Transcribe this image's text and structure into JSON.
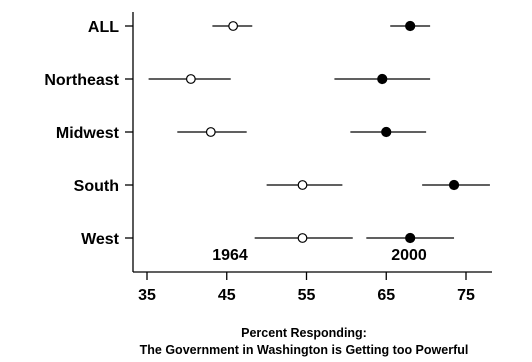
{
  "chart_data": {
    "type": "scatter",
    "categories": [
      "ALL",
      "Northeast",
      "Midwest",
      "South",
      "West"
    ],
    "series": [
      {
        "name": "1964",
        "marker": "open-circle",
        "color": "#000000",
        "values": [
          45.8,
          40.5,
          43.0,
          54.5,
          54.5
        ],
        "ci_low": [
          43.2,
          35.2,
          38.8,
          50.0,
          48.5
        ],
        "ci_high": [
          48.2,
          45.5,
          47.5,
          59.5,
          60.8
        ]
      },
      {
        "name": "2000",
        "marker": "filled-circle",
        "color": "#000000",
        "values": [
          68.0,
          64.5,
          65.0,
          73.5,
          68.0
        ],
        "ci_low": [
          65.5,
          58.5,
          60.5,
          69.5,
          62.5
        ],
        "ci_high": [
          70.5,
          70.5,
          70.0,
          78.0,
          73.5
        ]
      }
    ],
    "annotations": [
      "1964",
      "2000"
    ],
    "xlim": [
      32.5,
      80
    ],
    "xticks": [
      "35",
      "45",
      "55",
      "65",
      "75"
    ],
    "xlabel_line1": "Percent Responding:",
    "xlabel_line2": "The Government in Washington is Getting too Powerful",
    "grid": false
  }
}
